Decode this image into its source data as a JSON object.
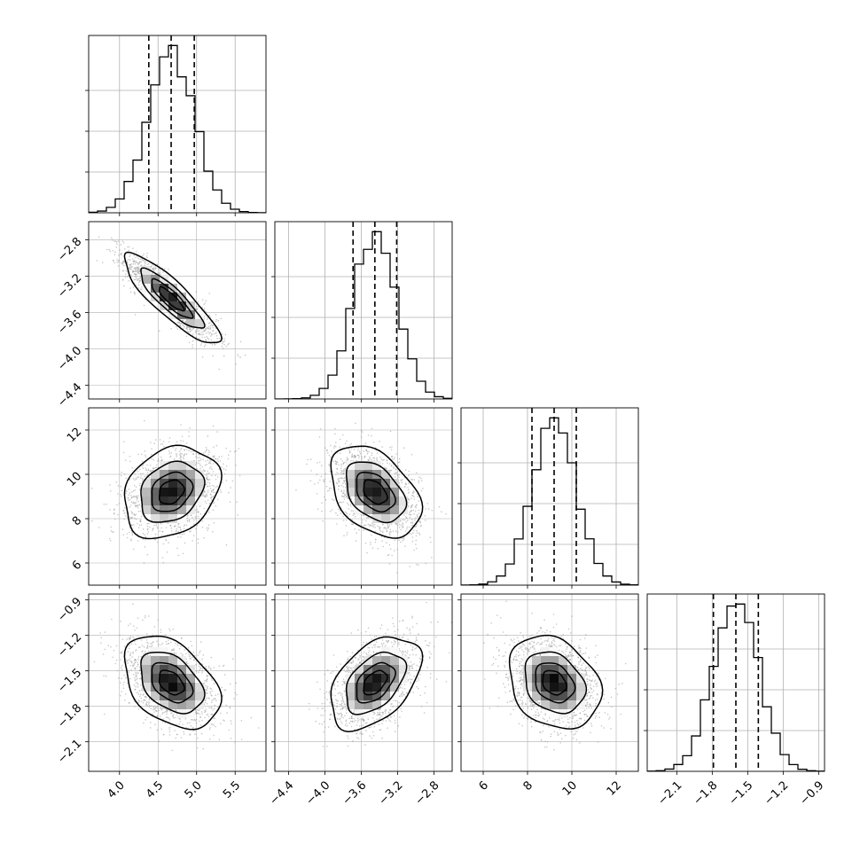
{
  "chart_data": {
    "type": "corner",
    "title": "",
    "grid": true,
    "parameters": [
      {
        "label": "",
        "range": [
          3.6,
          5.9
        ],
        "ticks": [
          "4.0",
          "4.5",
          "5.0",
          "5.5"
        ],
        "quantiles": [
          4.38,
          4.67,
          4.97
        ],
        "mean": 4.67,
        "sd": 0.3
      },
      {
        "label": "",
        "range": [
          -4.55,
          -2.6
        ],
        "ticks": [
          "−4.4",
          "−4.0",
          "−3.6",
          "−3.2",
          "−2.8"
        ],
        "quantiles": [
          -3.69,
          -3.45,
          -3.21
        ],
        "mean": -3.45,
        "sd": 0.24
      },
      {
        "label": "",
        "range": [
          5.0,
          13.0
        ],
        "ticks": [
          "6",
          "8",
          "10",
          "12"
        ],
        "quantiles": [
          8.2,
          9.2,
          10.2
        ],
        "mean": 9.2,
        "sd": 1.0
      },
      {
        "label": "",
        "range": [
          -2.35,
          -0.85
        ],
        "ticks": [
          "−2.1",
          "−1.8",
          "−1.5",
          "−1.2",
          "−0.9"
        ],
        "quantiles": [
          -1.79,
          -1.6,
          -1.41
        ],
        "mean": -1.6,
        "sd": 0.19
      }
    ],
    "correlations": [
      {
        "row": 1,
        "col": 0,
        "rho": -0.87
      },
      {
        "row": 2,
        "col": 0,
        "rho": 0.25
      },
      {
        "row": 2,
        "col": 1,
        "rho": -0.4
      },
      {
        "row": 3,
        "col": 0,
        "rho": -0.4
      },
      {
        "row": 3,
        "col": 1,
        "rho": 0.45
      },
      {
        "row": 3,
        "col": 2,
        "rho": -0.25
      }
    ],
    "histogram_bins": 20,
    "contour_levels_sigma": [
      0.5,
      1.0,
      1.5,
      2.0
    ],
    "colors": {
      "line": "#000000",
      "points": "#9a9a9a",
      "grid": "#b0b0b0",
      "background": "#ffffff"
    }
  }
}
